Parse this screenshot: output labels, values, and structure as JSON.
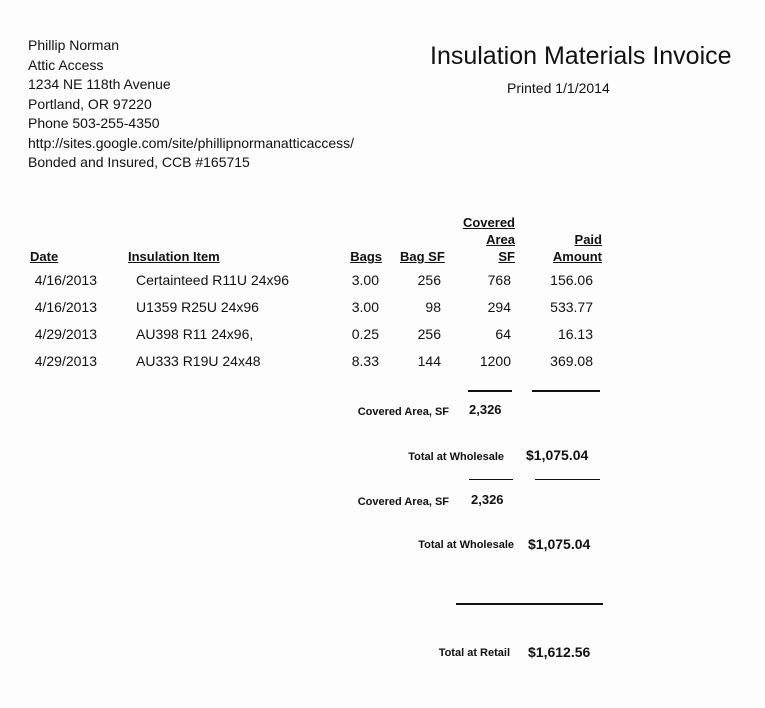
{
  "header": {
    "company": [
      "Phillip Norman",
      "Attic Access",
      "1234 NE 118th Avenue",
      "Portland, OR 97220",
      "Phone 503-255-4350",
      "http://sites.google.com/site/phillipnormanatticaccess/",
      "Bonded and Insured, CCB #165715"
    ],
    "title": "Insulation Materials Invoice",
    "printed": "Printed 1/1/2014"
  },
  "table": {
    "columns": [
      "Date",
      "Insulation Item",
      "Bags",
      "Bag SF",
      "Covered\nArea\nSF",
      "Paid\nAmount"
    ],
    "rows": [
      [
        "4/16/2013",
        "Certainteed R11U 24x96",
        "3.00",
        "256",
        "768",
        "156.06"
      ],
      [
        "4/16/2013",
        "U1359 R25U 24x96",
        "3.00",
        "98",
        "294",
        "533.77"
      ],
      [
        "4/29/2013",
        "AU398 R11 24x96,",
        "0.25",
        "256",
        "64",
        "16.13"
      ],
      [
        "4/29/2013",
        "AU333 R19U 24x48",
        "8.33",
        "144",
        "1200",
        "369.08"
      ]
    ]
  },
  "summary": [
    {
      "label": "Covered Area, SF",
      "value": "2,326"
    },
    {
      "label": "Total at Wholesale",
      "value": "$1,075.04"
    },
    {
      "label": "Covered Area, SF",
      "value": "2,326"
    },
    {
      "label": "Total at Wholesale",
      "value": "$1,075.04"
    },
    {
      "label": "Total at Retail",
      "value": "$1,612.56"
    }
  ]
}
